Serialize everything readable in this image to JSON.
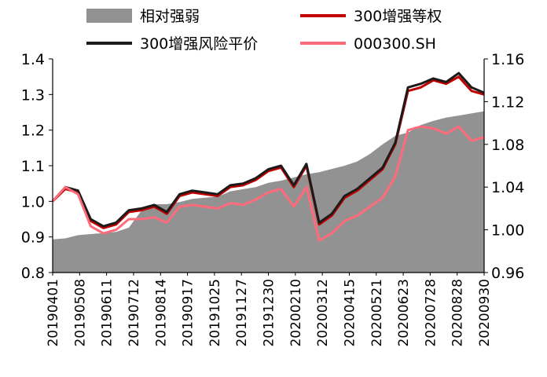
{
  "chart_data": {
    "type": "line",
    "title": "",
    "xlabel": "",
    "ylabel": "",
    "ylim": [
      0.8,
      1.4
    ],
    "y2lim": [
      0.96,
      1.16
    ],
    "yticks": [
      "0.8",
      "0.9",
      "1.0",
      "1.1",
      "1.2",
      "1.3",
      "1.4"
    ],
    "y2ticks": [
      "0.96",
      "1.00",
      "1.04",
      "1.08",
      "1.12",
      "1.16"
    ],
    "legend_position": "top",
    "grid": false,
    "x_tick_labels": [
      "20190401",
      "20190508",
      "20190611",
      "20190712",
      "20190814",
      "20190917",
      "20191025",
      "20191127",
      "20191230",
      "20200210",
      "20200312",
      "20200415",
      "20200521",
      "20200623",
      "20200728",
      "20200828",
      "20200930"
    ],
    "x": [
      "20190401",
      "20190412",
      "20190425",
      "20190508",
      "20190522",
      "20190611",
      "20190625",
      "20190712",
      "20190726",
      "20190814",
      "20190830",
      "20190917",
      "20191010",
      "20191025",
      "20191108",
      "20191127",
      "20191212",
      "20191230",
      "20200115",
      "20200210",
      "20200225",
      "20200312",
      "20200325",
      "20200415",
      "20200430",
      "20200521",
      "20200605",
      "20200623",
      "20200630",
      "20200710",
      "20200728",
      "20200810",
      "20200828",
      "20200915",
      "20200930"
    ],
    "series": [
      {
        "name": "相对强弱",
        "chart_type": "area",
        "axis": "right",
        "color": "#929292",
        "values": [
          0.991,
          0.992,
          0.995,
          0.996,
          0.997,
          0.998,
          1.002,
          1.018,
          1.024,
          1.024,
          1.026,
          1.029,
          1.03,
          1.031,
          1.036,
          1.038,
          1.04,
          1.044,
          1.046,
          1.049,
          1.052,
          1.054,
          1.057,
          1.06,
          1.064,
          1.071,
          1.08,
          1.088,
          1.091,
          1.098,
          1.102,
          1.105,
          1.107,
          1.109,
          1.111
        ]
      },
      {
        "name": "300增强等权",
        "chart_type": "line",
        "axis": "left",
        "color": "#c00000",
        "values": [
          1.0,
          1.035,
          1.025,
          0.945,
          0.925,
          0.935,
          0.97,
          0.975,
          0.985,
          0.965,
          1.015,
          1.025,
          1.02,
          1.015,
          1.04,
          1.045,
          1.06,
          1.085,
          1.095,
          1.04,
          1.1,
          0.935,
          0.96,
          1.01,
          1.03,
          1.06,
          1.09,
          1.16,
          1.31,
          1.32,
          1.34,
          1.33,
          1.35,
          1.31,
          1.3
        ]
      },
      {
        "name": "300增强风险平价",
        "chart_type": "line",
        "axis": "left",
        "color": "#1f1a1a",
        "values": [
          1.0,
          1.04,
          1.03,
          0.95,
          0.93,
          0.94,
          0.975,
          0.98,
          0.99,
          0.97,
          1.02,
          1.03,
          1.025,
          1.02,
          1.045,
          1.05,
          1.065,
          1.09,
          1.1,
          1.045,
          1.105,
          0.94,
          0.965,
          1.015,
          1.035,
          1.065,
          1.095,
          1.165,
          1.32,
          1.33,
          1.345,
          1.335,
          1.36,
          1.32,
          1.305
        ]
      },
      {
        "name": "000300.SH",
        "chart_type": "line",
        "axis": "left",
        "color": "#ff6b7a",
        "values": [
          1.0,
          1.04,
          1.02,
          0.93,
          0.91,
          0.92,
          0.95,
          0.95,
          0.955,
          0.94,
          0.985,
          0.99,
          0.985,
          0.98,
          0.995,
          0.99,
          1.005,
          1.025,
          1.035,
          0.985,
          1.04,
          0.89,
          0.91,
          0.945,
          0.96,
          0.985,
          1.01,
          1.07,
          1.2,
          1.21,
          1.205,
          1.19,
          1.21,
          1.17,
          1.18
        ]
      }
    ]
  }
}
